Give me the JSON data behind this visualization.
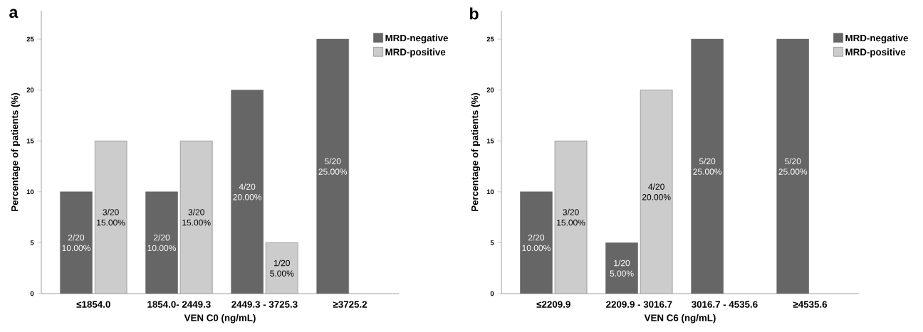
{
  "chart_data": [
    {
      "type": "bar",
      "title": "a",
      "xlabel": "VEN C0 (ng/mL)",
      "ylabel": "Percentage of patients (%)",
      "categories": [
        "≤1854.0",
        "1854.0- 2449.3",
        "2449.3 - 3725.3",
        "≥3725.2"
      ],
      "series": [
        {
          "name": "MRD-negative",
          "color": "#666666",
          "values": [
            10,
            10,
            20,
            25
          ],
          "value_labels": [
            "2/20 10.00%",
            "2/20 10.00%",
            "4/20 20.00%",
            "5/20 25.00%"
          ]
        },
        {
          "name": "MRD-positive",
          "color": "#cccccc",
          "values": [
            15,
            15,
            5,
            null
          ],
          "value_labels": [
            "3/20 15.00%",
            "3/20 15.00%",
            "1/20 5.00%",
            null
          ]
        }
      ],
      "ylim": [
        0,
        27.8
      ],
      "yticks": [
        0,
        5,
        10,
        15,
        20,
        25
      ],
      "legend": "top right"
    },
    {
      "type": "bar",
      "title": "b",
      "xlabel": "VEN C6 (ng/mL)",
      "ylabel": "Percentage of patients (%)",
      "categories": [
        "≤2209.9",
        "2209.9 - 3016.7",
        "3016.7 - 4535.6",
        "≥4535.6"
      ],
      "series": [
        {
          "name": "MRD-negative",
          "color": "#666666",
          "values": [
            10,
            5,
            25,
            25
          ],
          "value_labels": [
            "2/20 10.00%",
            "1/20 5.00%",
            "5/20 25.00%",
            "5/20 25.00%"
          ]
        },
        {
          "name": "MRD-positive",
          "color": "#cccccc",
          "values": [
            15,
            20,
            null,
            null
          ],
          "value_labels": [
            "3/20 15.00%",
            "4/20 20.00%",
            null,
            null
          ]
        }
      ],
      "ylim": [
        0,
        27.8
      ],
      "yticks": [
        0,
        5,
        10,
        15,
        20,
        25
      ],
      "legend": "top right"
    }
  ]
}
